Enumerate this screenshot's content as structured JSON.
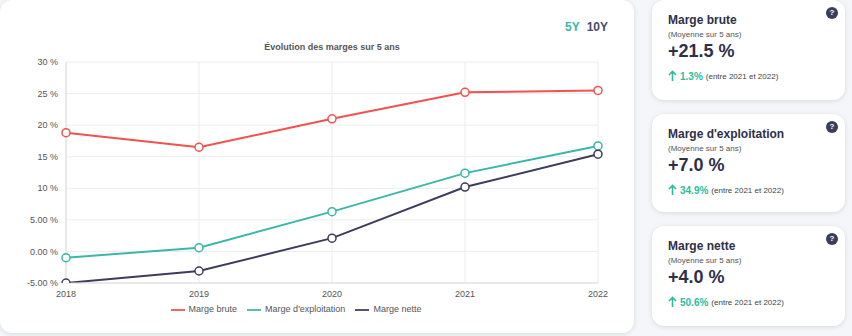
{
  "chart_data": {
    "type": "line",
    "title": "Évolution des marges sur 5 ans",
    "categories": [
      "2018",
      "2019",
      "2020",
      "2021",
      "2022"
    ],
    "series": [
      {
        "name": "Marge brute",
        "color": "#f0524f",
        "values": [
          18.8,
          16.5,
          21.0,
          25.2,
          25.5
        ]
      },
      {
        "name": "Marge d'exploitation",
        "color": "#3bb7a8",
        "values": [
          -1.0,
          0.6,
          6.3,
          12.4,
          16.7
        ]
      },
      {
        "name": "Marge nette",
        "color": "#3b3d5c",
        "values": [
          -5.0,
          -3.1,
          2.1,
          10.2,
          15.4
        ]
      }
    ],
    "ylim": [
      -5,
      30
    ],
    "yticks": [
      {
        "value": -5,
        "label": "-5.00 %"
      },
      {
        "value": 0,
        "label": "0.00 %"
      },
      {
        "value": 5,
        "label": "5.00 %"
      },
      {
        "value": 10,
        "label": "10 %"
      },
      {
        "value": 15,
        "label": "15 %"
      },
      {
        "value": 20,
        "label": "20 %"
      },
      {
        "value": 25,
        "label": "25 %"
      },
      {
        "value": 30,
        "label": "30 %"
      }
    ],
    "grid": true,
    "legend": "bottom",
    "marker": "circle"
  },
  "toggles": [
    {
      "label": "5Y",
      "active": true
    },
    {
      "label": "10Y",
      "active": false
    }
  ],
  "cards": [
    {
      "title": "Marge brute",
      "subtitle": "(Moyenne sur 5 ans)",
      "value": "+21.5 %",
      "change": "1.3%",
      "period": "(entre 2021 et 2022)",
      "help": "?"
    },
    {
      "title": "Marge d'exploitation",
      "subtitle": "(Moyenne sur 5 ans)",
      "value": "+7.0 %",
      "change": "34.9%",
      "period": "(entre 2021 et 2022)",
      "help": "?"
    },
    {
      "title": "Marge nette",
      "subtitle": "(Moyenne sur 5 ans)",
      "value": "+4.0 %",
      "change": "50.6%",
      "period": "(entre 2021 et 2022)",
      "help": "?"
    }
  ]
}
